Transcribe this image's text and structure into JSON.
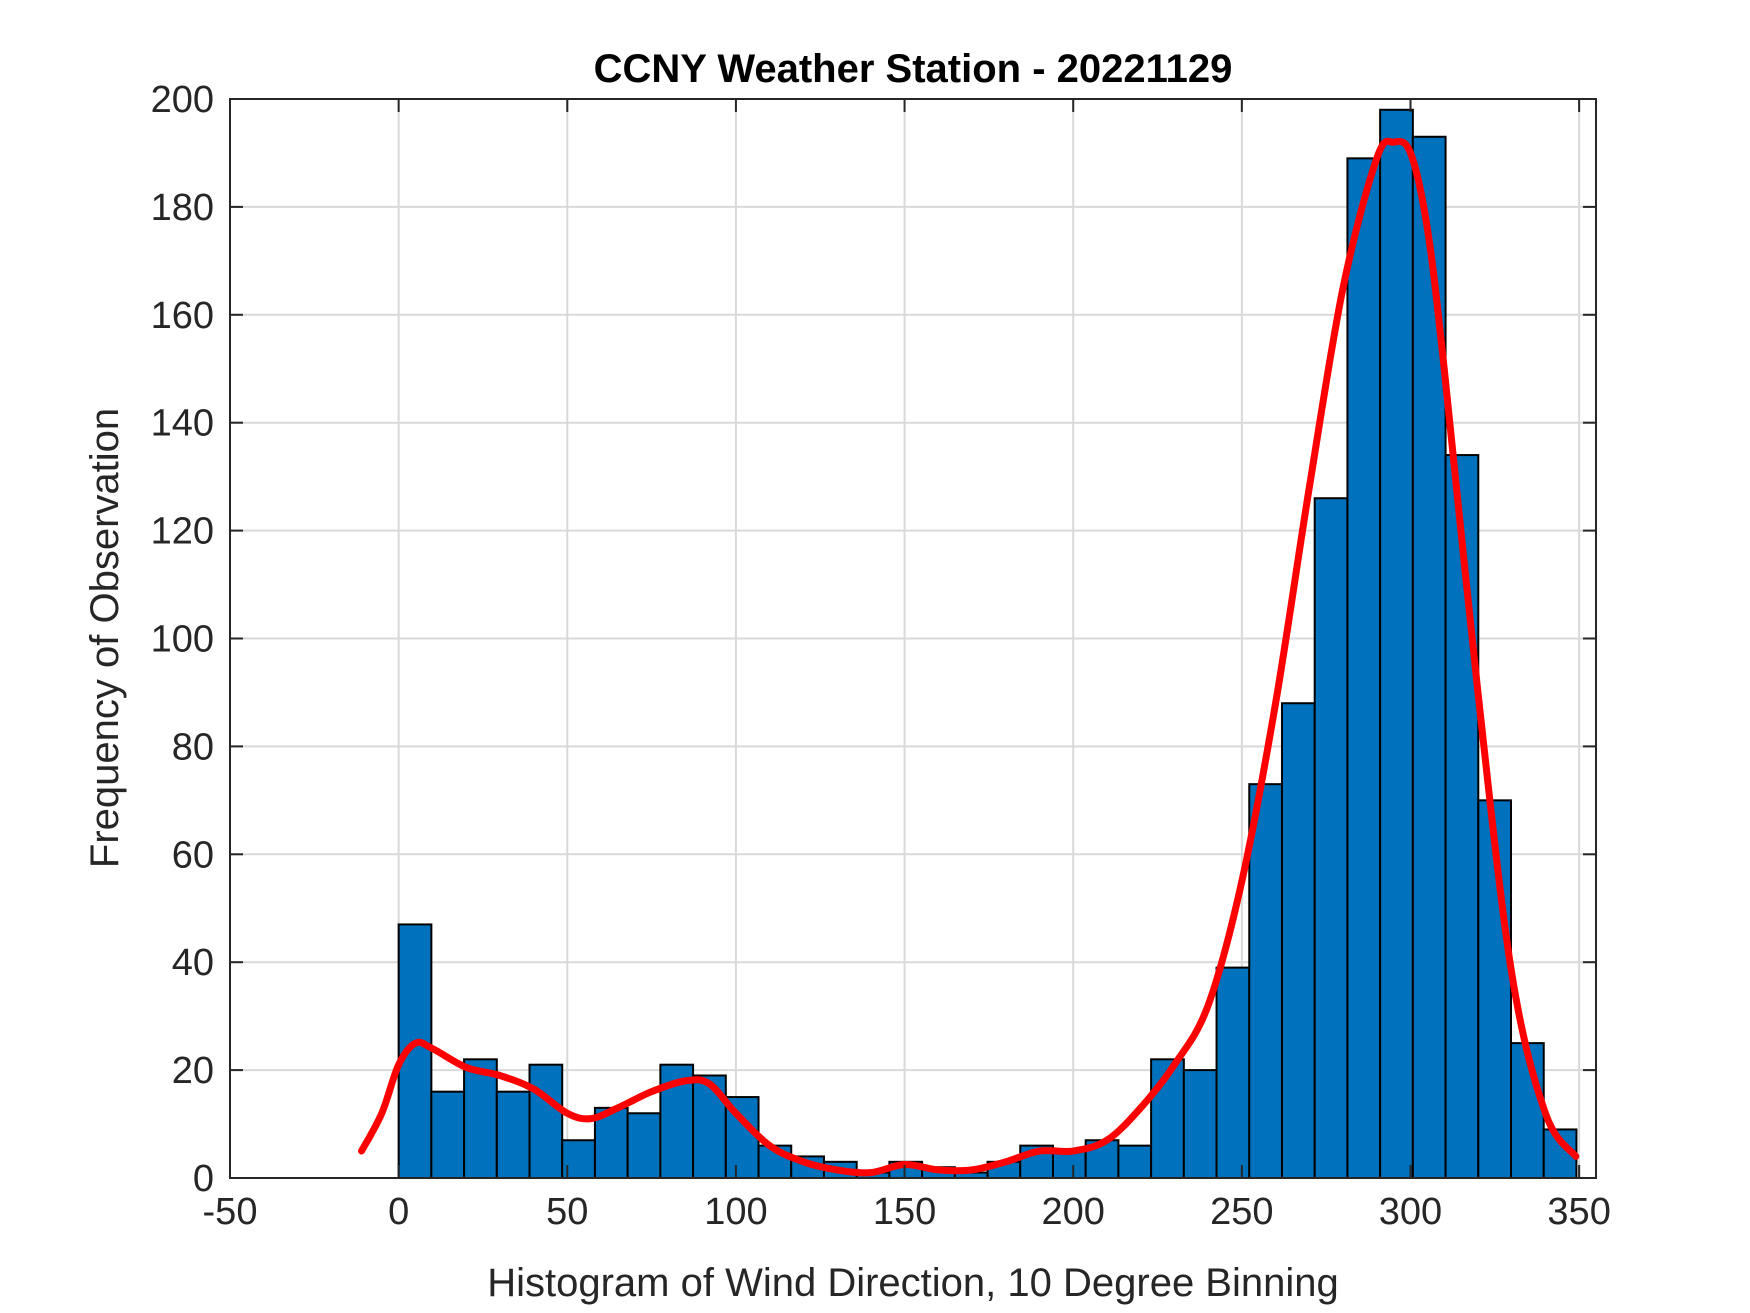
{
  "chart_data": {
    "type": "bar",
    "title": "CCNY Weather Station - 20221129",
    "xlabel": "Histogram of Wind Direction, 10 Degree Binning",
    "ylabel": "Frequency of Observation",
    "xlim": [
      -50,
      355
    ],
    "ylim": [
      0,
      200
    ],
    "xticks": [
      -50,
      0,
      50,
      100,
      150,
      200,
      250,
      300,
      350
    ],
    "yticks": [
      0,
      20,
      40,
      60,
      80,
      100,
      120,
      140,
      160,
      180,
      200
    ],
    "grid": true,
    "bin_width": 9.7,
    "bin_edges_start": 0,
    "values": [
      47,
      16,
      22,
      16,
      21,
      7,
      13,
      12,
      21,
      19,
      15,
      6,
      4,
      3,
      1,
      3,
      2,
      1,
      3,
      6,
      5,
      7,
      6,
      22,
      20,
      39,
      73,
      88,
      126,
      189,
      198,
      193,
      134,
      70,
      25,
      9
    ],
    "fit_curve": {
      "x": [
        -11,
        -5,
        0,
        5,
        10,
        20,
        30,
        40,
        50,
        57,
        65,
        75,
        85,
        92,
        100,
        110,
        120,
        130,
        140,
        150,
        160,
        170,
        180,
        190,
        200,
        210,
        220,
        230,
        240,
        250,
        260,
        270,
        280,
        290,
        295,
        300,
        305,
        310,
        320,
        330,
        340,
        349
      ],
      "y": [
        5,
        12,
        21,
        25,
        24,
        20.5,
        19,
        16.5,
        12,
        11,
        13,
        16,
        18,
        17.5,
        12,
        6,
        3,
        1.5,
        1,
        2.5,
        1.5,
        1.5,
        3,
        5,
        5,
        7,
        13,
        21,
        32,
        55,
        88,
        128,
        165,
        189,
        192,
        190,
        176,
        150,
        90,
        38,
        12,
        4
      ],
      "color": "#ff0000"
    },
    "bar_color": "#0072bd",
    "bar_edge_color": "#000000"
  }
}
